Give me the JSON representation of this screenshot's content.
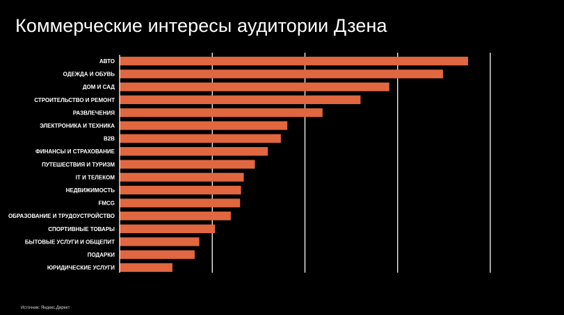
{
  "title": "Коммерческие интересы аудитории Дзена",
  "source": "Источник: Яндекс.Директ",
  "colors": {
    "background": "#000000",
    "bar": "#e0673f",
    "gridline": "#ffffff",
    "text": "#ffffff"
  },
  "chart_data": {
    "type": "bar",
    "orientation": "horizontal",
    "title": "Коммерческие интересы аудитории Дзена",
    "xlabel": "",
    "ylabel": "",
    "grid": true,
    "xlim": [
      0,
      400
    ],
    "gridlines_at": [
      100,
      200,
      300,
      400
    ],
    "categories": [
      "АВТО",
      "ОДЕЖДА И ОБУВЬ",
      "ДОМ И САД",
      "СТРОИТЕЛЬСТВО И РЕМОНТ",
      "РАЗВЛЕЧЕНИЯ",
      "ЭЛЕКТРОНИКА И ТЕХНИКА",
      "B2B",
      "ФИНАНСЫ И СТРАХОВАНИЕ",
      "ПУТЕШЕСТВИЯ И ТУРИЗМ",
      "IT И ТЕЛЕКОМ",
      "НЕДВИЖИМОСТЬ",
      "FMCG",
      "ОБРАЗОВАНИЕ И ТРУДОУСТРОЙСТВО",
      "СПОРТИВНЫЕ ТОВАРЫ",
      "БЫТОВЫЕ УСЛУГИ И ОБЩЕПИТ",
      "ПОДАРКИ",
      "ЮРИДИЧЕСКИЕ УСЛУГИ"
    ],
    "values": [
      376,
      349,
      291,
      260,
      219,
      181,
      174,
      160,
      146,
      134,
      131,
      130,
      120,
      103,
      86,
      81,
      57
    ]
  }
}
